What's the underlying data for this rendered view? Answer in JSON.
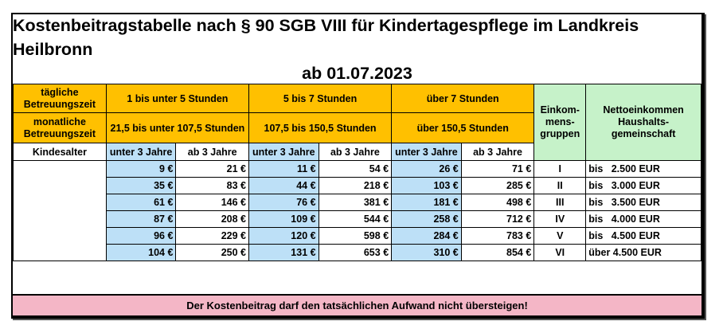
{
  "title": {
    "line1": "Kostenbeitragstabelle nach § 90 SGB VIII für Kindertagespflege im Landkreis Heilbronn",
    "line2": "ab 01.07.2023"
  },
  "header": {
    "daily_label": "tägliche Betreuungszeit",
    "monthly_label": "monatliche Betreuungszeit",
    "age_label": "Kindesalter",
    "groups_label": "Einkom-mens-gruppen",
    "income_label": "Nettoeinkommen Haushalts-gemeinschaft",
    "bands": [
      {
        "daily": "1 bis unter 5 Stunden",
        "monthly": "21,5 bis unter 107,5 Stunden"
      },
      {
        "daily": "5 bis 7 Stunden",
        "monthly": "107,5 bis 150,5 Stunden"
      },
      {
        "daily": "über 7 Stunden",
        "monthly": "über 150,5 Stunden"
      }
    ],
    "age_under3": "unter 3 Jahre",
    "age_from3": "ab 3 Jahre"
  },
  "rows": [
    {
      "v": [
        "9 €",
        "21 €",
        "11 €",
        "54 €",
        "26 €",
        "71 €"
      ],
      "group": "I",
      "income": "bis   2.500 EUR"
    },
    {
      "v": [
        "35 €",
        "83 €",
        "44 €",
        "218 €",
        "103 €",
        "285 €"
      ],
      "group": "II",
      "income": "bis   3.000 EUR"
    },
    {
      "v": [
        "61 €",
        "146 €",
        "76 €",
        "381 €",
        "181 €",
        "498 €"
      ],
      "group": "III",
      "income": "bis   3.500 EUR"
    },
    {
      "v": [
        "87 €",
        "208 €",
        "109 €",
        "544 €",
        "258 €",
        "712 €"
      ],
      "group": "IV",
      "income": "bis   4.000 EUR"
    },
    {
      "v": [
        "96 €",
        "229 €",
        "120 €",
        "598 €",
        "284 €",
        "783 €"
      ],
      "group": "V",
      "income": "bis   4.500 EUR"
    },
    {
      "v": [
        "104 €",
        "250 €",
        "131 €",
        "653 €",
        "310 €",
        "854 €"
      ],
      "group": "VI",
      "income": "über 4.500 EUR"
    }
  ],
  "footer": "Der Kostenbeitrag darf den tatsächlichen Aufwand nicht übersteigen!"
}
